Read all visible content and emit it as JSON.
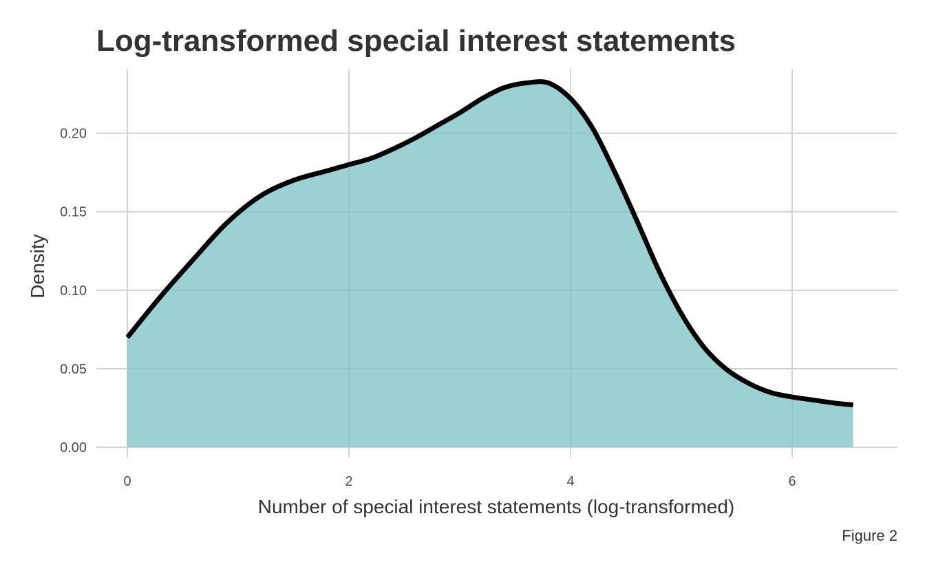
{
  "chart_data": {
    "type": "area",
    "title": "Log-transformed special interest statements",
    "xlabel": "Number of special interest statements (log-transformed)",
    "ylabel": "Density",
    "caption": "Figure 2",
    "xlim": [
      -0.28,
      6.95
    ],
    "ylim": [
      -0.0065,
      0.241
    ],
    "x_ticks": [
      0,
      2,
      4,
      6
    ],
    "x_tick_labels": [
      "0",
      "2",
      "4",
      "6"
    ],
    "y_ticks": [
      0.0,
      0.05,
      0.1,
      0.15,
      0.2
    ],
    "y_tick_labels": [
      "0.00",
      "0.05",
      "0.10",
      "0.15",
      "0.20"
    ],
    "grid": true,
    "fill_color": "#7fc4c5",
    "line_color": "#000000",
    "series": [
      {
        "x": [
          0.0,
          0.3,
          0.6,
          0.9,
          1.2,
          1.5,
          1.8,
          2.0,
          2.2,
          2.4,
          2.6,
          2.8,
          3.0,
          3.2,
          3.4,
          3.6,
          3.8,
          4.0,
          4.2,
          4.4,
          4.6,
          4.8,
          5.0,
          5.2,
          5.4,
          5.6,
          5.8,
          6.0,
          6.2,
          6.4,
          6.55
        ],
        "y": [
          0.07,
          0.096,
          0.12,
          0.143,
          0.16,
          0.17,
          0.176,
          0.18,
          0.184,
          0.19,
          0.197,
          0.205,
          0.213,
          0.222,
          0.229,
          0.232,
          0.232,
          0.222,
          0.203,
          0.175,
          0.144,
          0.112,
          0.085,
          0.064,
          0.05,
          0.041,
          0.035,
          0.032,
          0.03,
          0.028,
          0.027
        ]
      }
    ]
  }
}
